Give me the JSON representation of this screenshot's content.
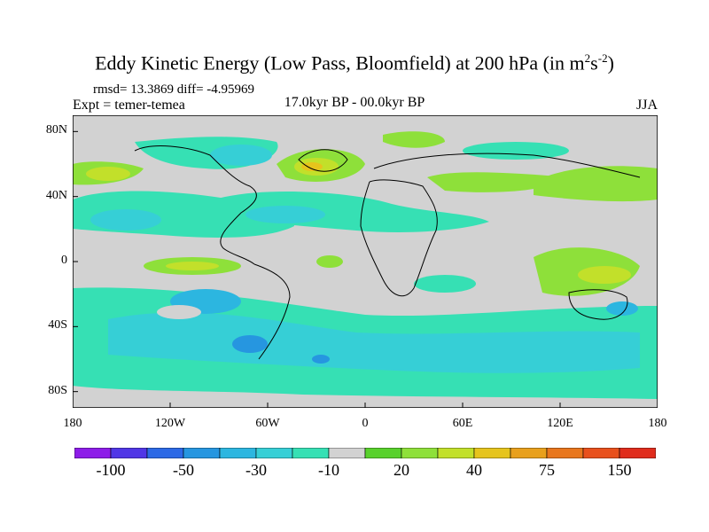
{
  "title": {
    "main": "Eddy Kinetic Energy (Low Pass, Bloomfield) at 200 hPa (in m",
    "exp1": "2",
    "mid": "s",
    "exp2": "-2",
    "close": ")"
  },
  "stats": "rmsd= 13.3869 diff= -4.95969",
  "experiment": "Expt = temer-temea",
  "period": "17.0kyr BP - 00.0kyr BP",
  "season": "JJA",
  "map": {
    "lat_labels": [
      "80N",
      "40N",
      "0",
      "40S",
      "80S"
    ],
    "lat_values": [
      80,
      40,
      0,
      -40,
      -80
    ],
    "lon_labels": [
      "180",
      "120W",
      "60W",
      "0",
      "60E",
      "120E",
      "180"
    ],
    "lon_values": [
      -180,
      -120,
      -60,
      0,
      60,
      120,
      180
    ],
    "lat_range": [
      -90,
      90
    ],
    "lon_range": [
      -180,
      180
    ],
    "background_color": "#d2d2d2"
  },
  "colorbar": {
    "colors": [
      "#8d1ce8",
      "#5036e6",
      "#2c69e6",
      "#2696e0",
      "#2cb6e0",
      "#36cfd6",
      "#36e0b4",
      "#d2d2d2",
      "#58d12c",
      "#8ee03a",
      "#c2e02a",
      "#e6c41c",
      "#e8a01c",
      "#e8761c",
      "#e8501c",
      "#e02c1c"
    ],
    "labels": [
      "-100",
      "-50",
      "-30",
      "-10",
      "20",
      "40",
      "75",
      "150"
    ],
    "label_boundaries": [
      2,
      4,
      6,
      8,
      10,
      12,
      14,
      16
    ]
  }
}
